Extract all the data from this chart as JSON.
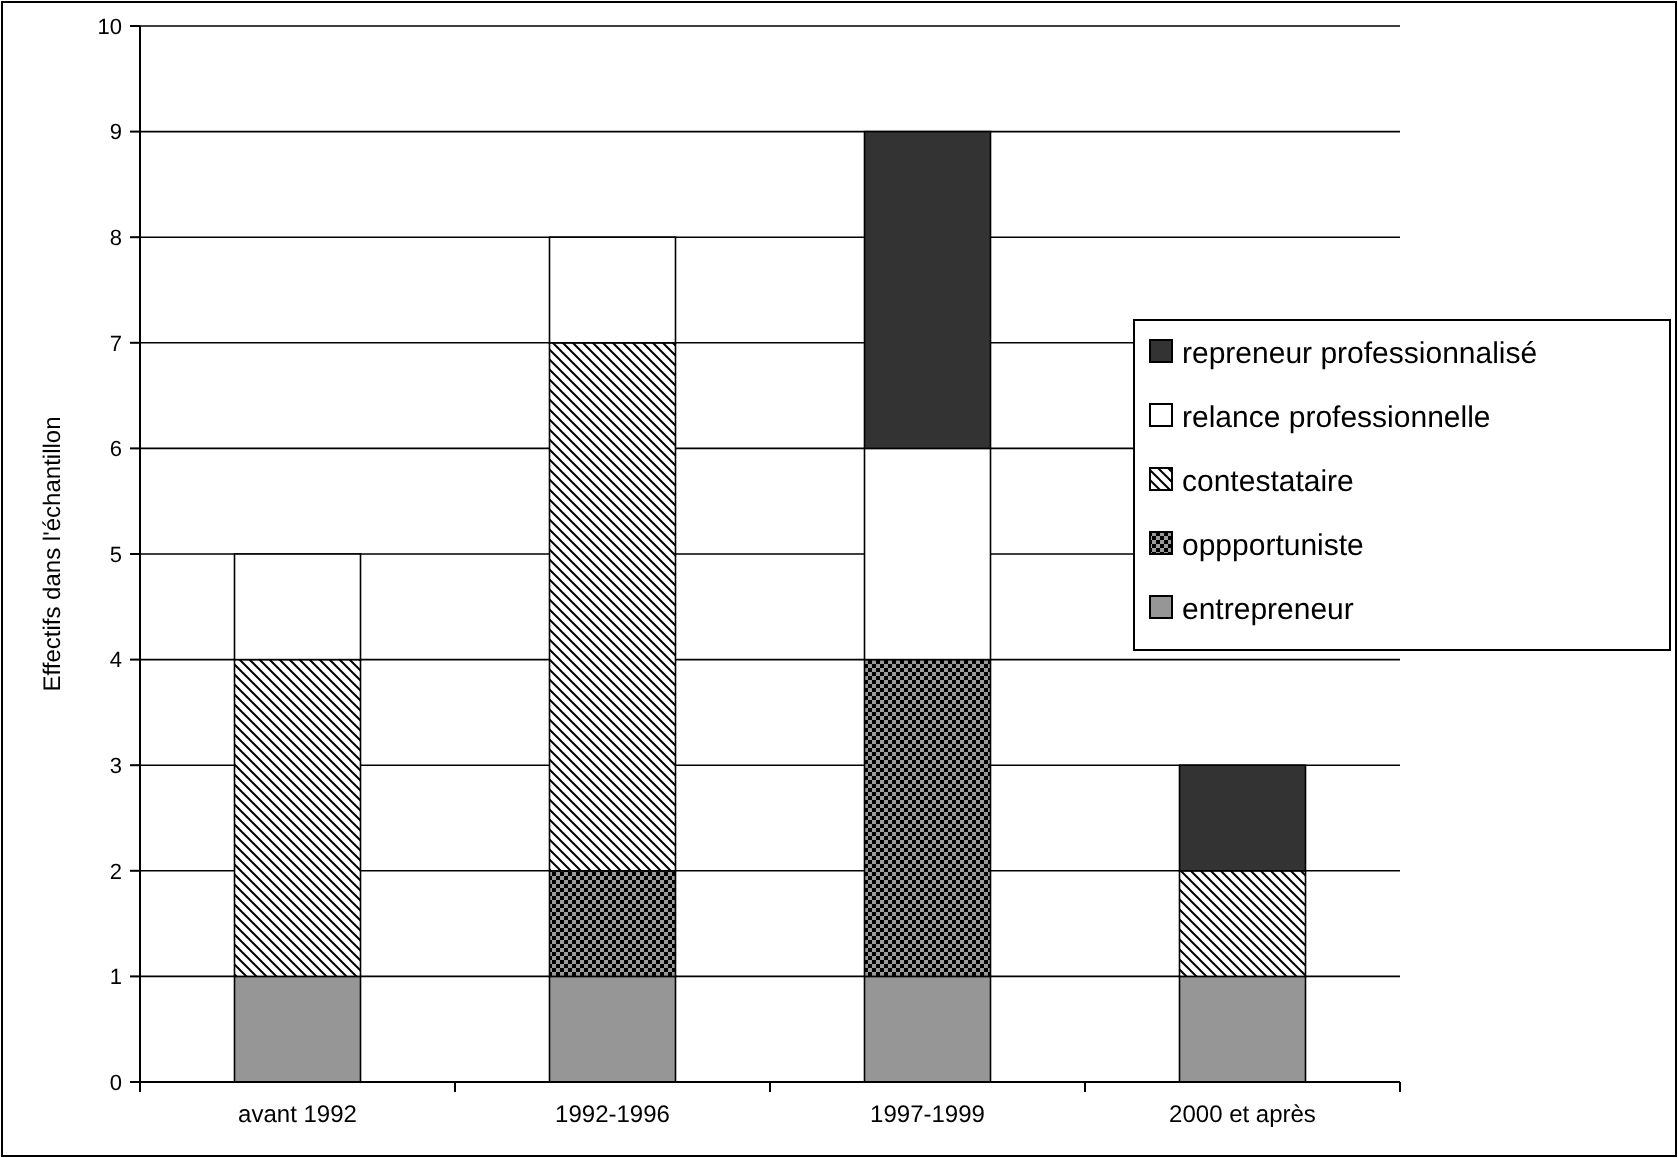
{
  "chart_data": {
    "type": "bar",
    "stacked": true,
    "ylabel": "Effectifs dans l'échantillon",
    "categories": [
      "avant 1992",
      "1992-1996",
      "1997-1999",
      "2000 et après"
    ],
    "series": [
      {
        "name": "entrepreneur",
        "color": "#969696",
        "values": [
          1,
          1,
          1,
          1
        ]
      },
      {
        "name": "oppportuniste",
        "color": "#000000",
        "values": [
          0,
          1,
          3,
          0
        ]
      },
      {
        "name": "contestataire",
        "color": "#000000",
        "values": [
          3,
          5,
          0,
          1
        ]
      },
      {
        "name": "relance professionnelle",
        "color": "#ffffff",
        "values": [
          1,
          1,
          2,
          0
        ]
      },
      {
        "name": "repreneur professionnalisé",
        "color": "#333333",
        "values": [
          0,
          0,
          3,
          1
        ]
      }
    ],
    "ylim": [
      0,
      10
    ],
    "yticks": [
      0,
      1,
      2,
      3,
      4,
      5,
      6,
      7,
      8,
      9,
      10
    ],
    "grid": "y",
    "legend": "right"
  }
}
